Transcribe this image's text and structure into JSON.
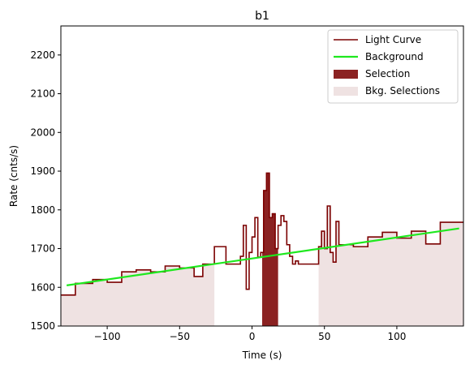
{
  "chart_data": {
    "type": "line",
    "title": "b1",
    "xlabel": "Time (s)",
    "ylabel": "Rate (cnts/s)",
    "xlim": [
      -132,
      146
    ],
    "ylim": [
      1500,
      2275
    ],
    "xticks": [
      -100,
      -50,
      0,
      50,
      100
    ],
    "xtick_labels": [
      "−100",
      "−50",
      "0",
      "50",
      "100"
    ],
    "yticks": [
      1500,
      1600,
      1700,
      1800,
      1900,
      2000,
      2100,
      2200
    ],
    "ytick_labels": [
      "1500",
      "1600",
      "1700",
      "1800",
      "1900",
      "2000",
      "2100",
      "2200"
    ],
    "grid": false,
    "legend_position": "upper-right",
    "legend": [
      {
        "label": "Light Curve",
        "kind": "line",
        "color": "#7b0000"
      },
      {
        "label": "Background",
        "kind": "line",
        "color": "#1ee81e"
      },
      {
        "label": "Selection",
        "kind": "patch",
        "color": "#8b2222"
      },
      {
        "label": "Bkg. Selections",
        "kind": "patch",
        "color": "#efe2e2"
      }
    ],
    "background_fit": {
      "name": "Background",
      "color": "#1ee81e",
      "x": [
        -128,
        143
      ],
      "y": [
        1605,
        1752
      ]
    },
    "selection": {
      "name": "Selection",
      "color": "#8b2222",
      "x_range": [
        7,
        18
      ]
    },
    "bkg_selections": {
      "name": "Bkg. Selections",
      "color": "#efe2e2",
      "ranges": [
        [
          -132,
          -26
        ],
        [
          46,
          146
        ]
      ]
    },
    "light_curve": {
      "name": "Light Curve",
      "color": "#7b0000",
      "edges": [
        -132,
        -122,
        -110,
        -100,
        -90,
        -80,
        -70,
        -60,
        -50,
        -40,
        -34,
        -26,
        -18,
        -8,
        -6,
        -4,
        -2,
        0,
        2,
        4,
        6,
        8,
        10,
        12,
        14,
        16,
        18,
        20,
        22,
        24,
        26,
        28,
        30,
        32,
        46,
        48,
        50,
        52,
        54,
        56,
        58,
        60,
        70,
        80,
        90,
        100,
        110,
        120,
        130,
        146
      ],
      "values": [
        1580,
        1610,
        1620,
        1613,
        1640,
        1645,
        1640,
        1655,
        1650,
        1628,
        1660,
        1705,
        1660,
        1680,
        1760,
        1595,
        1690,
        1730,
        1780,
        1678,
        1690,
        1850,
        1895,
        1780,
        1790,
        1700,
        1760,
        1785,
        1770,
        1710,
        1680,
        1660,
        1668,
        1660,
        1705,
        1745,
        1700,
        1810,
        1690,
        1665,
        1770,
        1710,
        1705,
        1730,
        1742,
        1727,
        1745,
        1712,
        1768
      ]
    }
  }
}
